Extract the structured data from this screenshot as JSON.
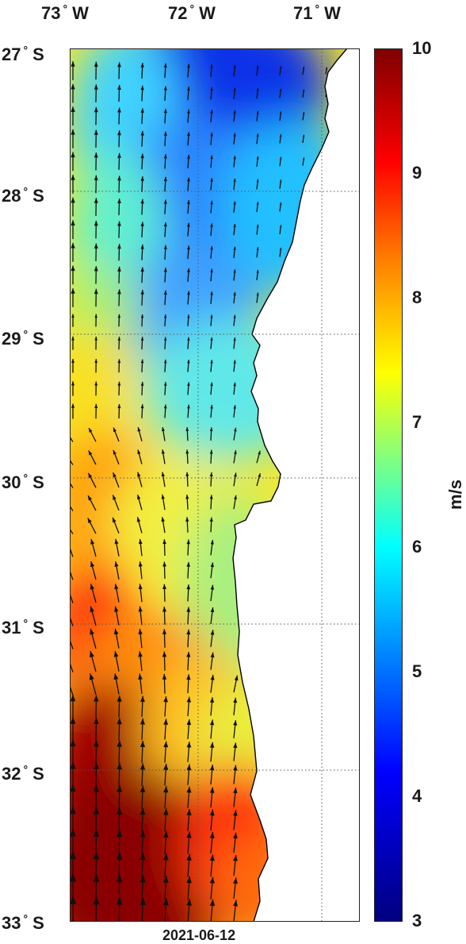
{
  "lon_labels": [
    {
      "num": "73",
      "deg": "°",
      "hem": "W"
    },
    {
      "num": "72",
      "deg": "°",
      "hem": "W"
    },
    {
      "num": "71",
      "deg": "°",
      "hem": "W"
    }
  ],
  "lat_labels": [
    {
      "num": "27",
      "deg": "°",
      "hem": "S"
    },
    {
      "num": "28",
      "deg": "°",
      "hem": "S"
    },
    {
      "num": "29",
      "deg": "°",
      "hem": "S"
    },
    {
      "num": "30",
      "deg": "°",
      "hem": "S"
    },
    {
      "num": "31",
      "deg": "°",
      "hem": "S"
    },
    {
      "num": "32",
      "deg": "°",
      "hem": "S"
    },
    {
      "num": "33",
      "deg": "°",
      "hem": "S"
    }
  ],
  "colorbar": {
    "ticks": [
      "10",
      "9",
      "8",
      "7",
      "6",
      "5",
      "4",
      "3"
    ],
    "unit": "m/s",
    "range": [
      3,
      10
    ]
  },
  "date": "2021-06-12",
  "colors": {
    "land": "#ffffff",
    "coast": "#000000",
    "arrow": "#111111",
    "grid": "#555555"
  }
}
